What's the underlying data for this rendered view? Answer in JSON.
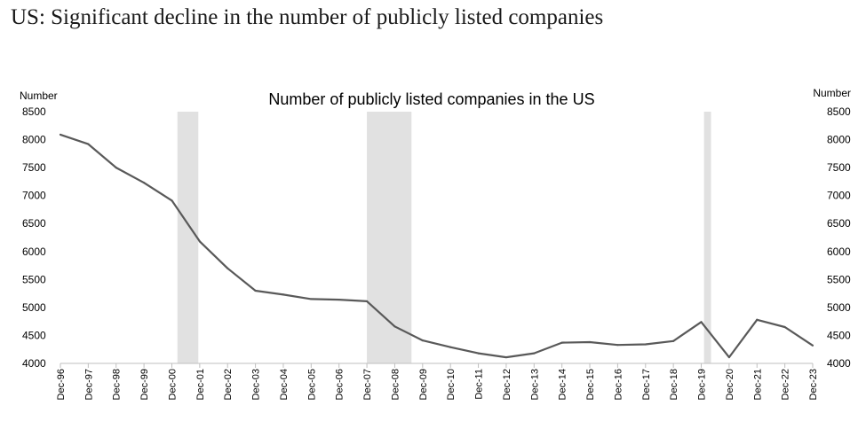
{
  "page": {
    "headline": "US: Significant decline in the number of publicly listed companies"
  },
  "chart_data": {
    "type": "line",
    "title": "Number of publicly listed companies in the US",
    "ylabel_left": "Number",
    "ylabel_right": "Number",
    "ylim": [
      4000,
      8500
    ],
    "yticks": [
      4000,
      4500,
      5000,
      5500,
      6000,
      6500,
      7000,
      7500,
      8000,
      8500
    ],
    "grid": false,
    "legend": "none",
    "categories": [
      "Dec-96",
      "Dec-97",
      "Dec-98",
      "Dec-99",
      "Dec-00",
      "Dec-01",
      "Dec-02",
      "Dec-03",
      "Dec-04",
      "Dec-05",
      "Dec-06",
      "Dec-07",
      "Dec-08",
      "Dec-09",
      "Dec-10",
      "Dec-11",
      "Dec-12",
      "Dec-13",
      "Dec-14",
      "Dec-15",
      "Dec-16",
      "Dec-17",
      "Dec-18",
      "Dec-19",
      "Dec-20",
      "Dec-21",
      "Dec-22",
      "Dec-23"
    ],
    "series": [
      {
        "values": [
          8090,
          7920,
          7500,
          7230,
          6910,
          6180,
          5700,
          5300,
          5230,
          5150,
          5140,
          5110,
          4660,
          4410,
          4290,
          4180,
          4110,
          4180,
          4370,
          4380,
          4330,
          4340,
          4400,
          4740,
          4110,
          4780,
          4650,
          4320
        ],
        "color": "#595959"
      }
    ],
    "recession_bands": [
      {
        "start": 4.2,
        "end": 4.95
      },
      {
        "start": 11.0,
        "end": 12.6
      },
      {
        "start": 23.1,
        "end": 23.35
      }
    ],
    "band_color": "#e1e1e1",
    "axis_color": "#bfbfbf"
  }
}
